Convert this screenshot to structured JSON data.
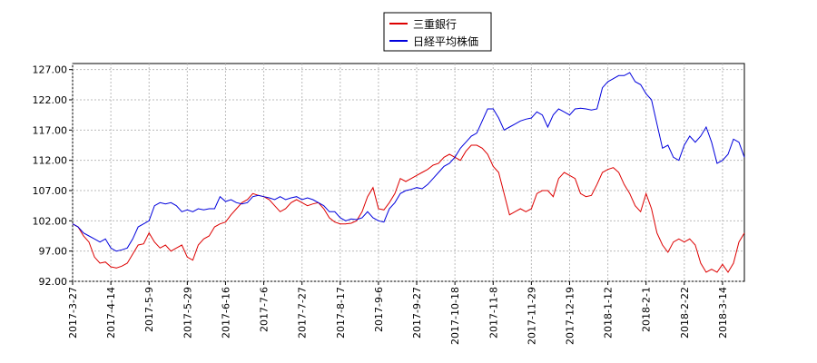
{
  "chart_data": {
    "type": "line",
    "categories": [
      "2017-3-27",
      null,
      null,
      null,
      null,
      null,
      null,
      "2017-4-14",
      null,
      null,
      null,
      null,
      null,
      null,
      "2017-5-9",
      null,
      null,
      null,
      null,
      null,
      null,
      "2017-5-29",
      null,
      null,
      null,
      null,
      null,
      null,
      "2017-6-16",
      null,
      null,
      null,
      null,
      null,
      null,
      "2017-7-6",
      null,
      null,
      null,
      null,
      null,
      null,
      "2017-7-27",
      null,
      null,
      null,
      null,
      null,
      null,
      "2017-8-17",
      null,
      null,
      null,
      null,
      null,
      null,
      "2017-9-6",
      null,
      null,
      null,
      null,
      null,
      null,
      "2017-9-27",
      null,
      null,
      null,
      null,
      null,
      null,
      "2017-10-18",
      null,
      null,
      null,
      null,
      null,
      null,
      "2017-11-8",
      null,
      null,
      null,
      null,
      null,
      null,
      "2017-11-29",
      null,
      null,
      null,
      null,
      null,
      null,
      "2017-12-19",
      null,
      null,
      null,
      null,
      null,
      null,
      "2018-1-12",
      null,
      null,
      null,
      null,
      null,
      null,
      "2018-2-1",
      null,
      null,
      null,
      null,
      null,
      null,
      "2018-2-22",
      null,
      null,
      null,
      null,
      null,
      null,
      "2018-3-14",
      null,
      null,
      null,
      null
    ],
    "series": [
      {
        "name": "三重銀行",
        "color": "#dd0000",
        "values": [
          101.5,
          101,
          99.5,
          98.5,
          96,
          95,
          95.2,
          94.4,
          94.2,
          94.5,
          95,
          96.5,
          98,
          98.2,
          100,
          98.5,
          97.5,
          98,
          97,
          97.5,
          98,
          96,
          95.5,
          98,
          99,
          99.5,
          101,
          101.5,
          101.8,
          103,
          104,
          105,
          105.5,
          106.5,
          106.2,
          106,
          105.5,
          104.5,
          103.5,
          104,
          105,
          105.5,
          105,
          104.5,
          104.8,
          105,
          104,
          102.5,
          101.8,
          101.5,
          101.5,
          101.6,
          102,
          103.5,
          106,
          107.5,
          104,
          103.8,
          105,
          106.5,
          109,
          108.5,
          109,
          109.5,
          110,
          110.5,
          111.2,
          111.5,
          112.5,
          113,
          112.5,
          112,
          113.5,
          114.5,
          114.5,
          114,
          113,
          111,
          110,
          106.5,
          103,
          103.5,
          104,
          103.5,
          104,
          106.5,
          107,
          107,
          106,
          109,
          110,
          109.5,
          109,
          106.5,
          106,
          106.2,
          108,
          110,
          110.5,
          110.8,
          110,
          108,
          106.5,
          104.5,
          103.5,
          106.5,
          104,
          100,
          98,
          96.8,
          98.5,
          99,
          98.5,
          99,
          98,
          95,
          93.5,
          94,
          93.5,
          94.8,
          93.5,
          95,
          98.5,
          100
        ]
      },
      {
        "name": "日経平均株価",
        "color": "#0000dd",
        "values": [
          101.5,
          101,
          100,
          99.5,
          99,
          98.5,
          99,
          97.5,
          97,
          97.2,
          97.5,
          99,
          101,
          101.5,
          102,
          104.5,
          105,
          104.8,
          105,
          104.5,
          103.5,
          103.8,
          103.5,
          104,
          103.8,
          104,
          104,
          106,
          105.2,
          105.5,
          105,
          104.8,
          105,
          106,
          106.2,
          106,
          105.8,
          105.5,
          106,
          105.5,
          105.8,
          106,
          105.5,
          105.8,
          105.5,
          105,
          104.5,
          103.5,
          103.5,
          102.5,
          102,
          102.3,
          102.2,
          102.5,
          103.5,
          102.5,
          102,
          101.8,
          104,
          105,
          106.5,
          107,
          107.2,
          107.5,
          107.3,
          108,
          109,
          110,
          111,
          111.5,
          112.5,
          114,
          115,
          116,
          116.5,
          118.5,
          120.5,
          120.5,
          119,
          117,
          117.5,
          118,
          118.5,
          118.8,
          119,
          120,
          119.5,
          117.5,
          119.5,
          120.5,
          120,
          119.5,
          120.5,
          120.6,
          120.5,
          120.3,
          120.5,
          124,
          125,
          125.5,
          126,
          126,
          126.5,
          125,
          124.5,
          123,
          122,
          118,
          114,
          114.5,
          112.5,
          112,
          114.5,
          116,
          115,
          116,
          117.5,
          115,
          111.5,
          112,
          113,
          115.5,
          115,
          112.5
        ]
      }
    ],
    "ylim": [
      92,
      128
    ],
    "yticks": [
      {
        "value": 92,
        "label": "92.00"
      },
      {
        "value": 97,
        "label": "97.00"
      },
      {
        "value": 102,
        "label": "102.00"
      },
      {
        "value": 107,
        "label": "107.00"
      },
      {
        "value": 112,
        "label": "112.00"
      },
      {
        "value": 117,
        "label": "117.00"
      },
      {
        "value": 122,
        "label": "122.00"
      },
      {
        "value": 127,
        "label": "127.00"
      }
    ],
    "grid": true,
    "legend": "top"
  }
}
